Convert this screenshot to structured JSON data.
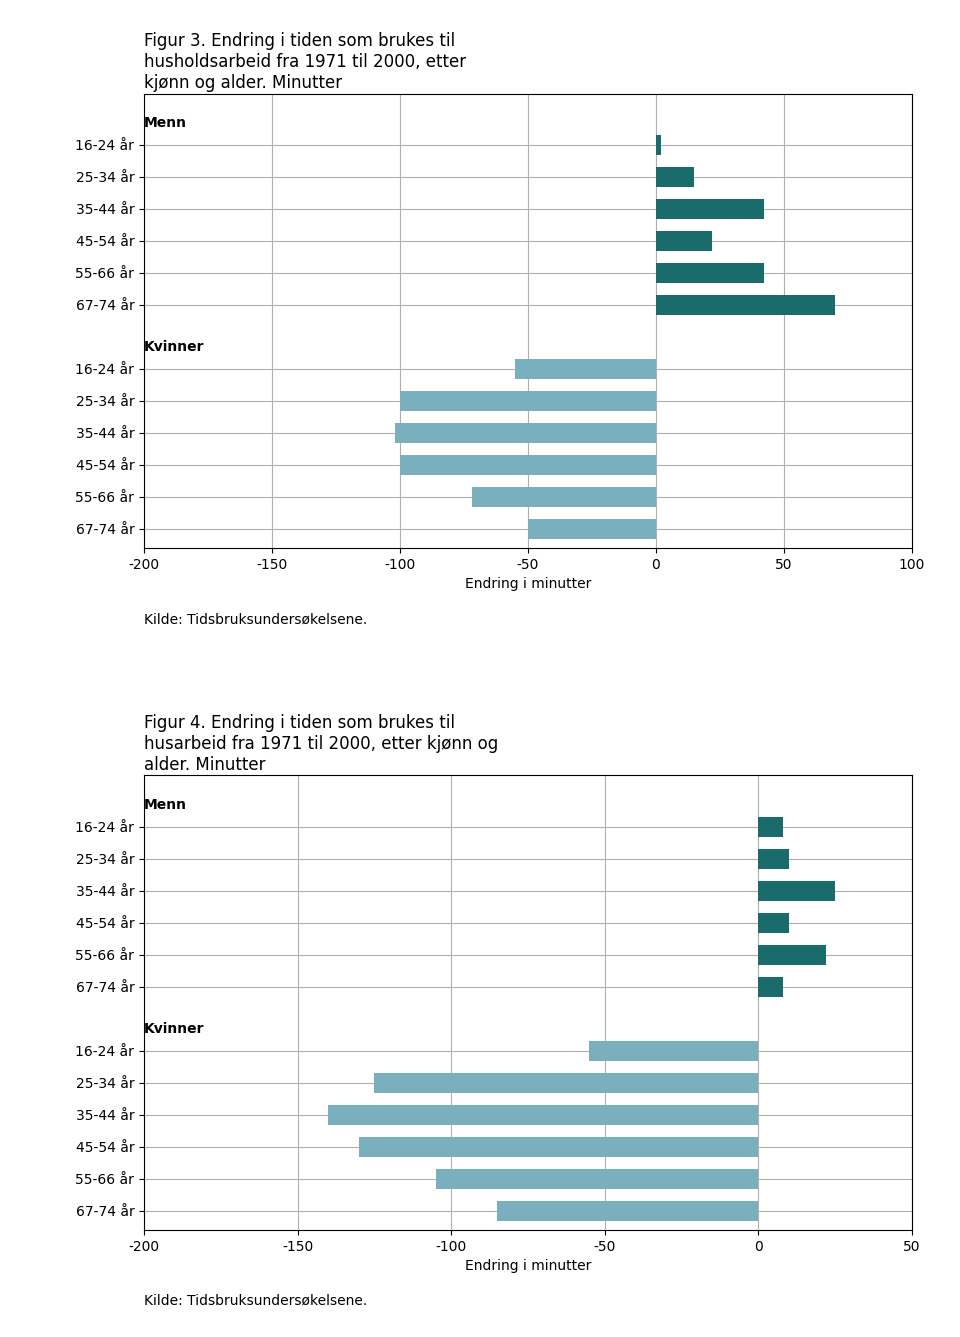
{
  "chart_data": [
    {
      "type": "bar",
      "orientation": "horizontal",
      "title": "Figur 3. Endring i tiden som brukes til\nhusholdsarbeid fra 1971 til 2000, etter\nkjønn og alder. Minutter",
      "x_label": "Endring i minutter",
      "source": "Kilde: Tidsbruksundersøkelsene.",
      "categories": [
        "16-24 år",
        "25-34 år",
        "35-44 år",
        "45-54 år",
        "55-66 år",
        "67-74 år"
      ],
      "series": [
        {
          "name": "Menn",
          "color": "#1a6b6b",
          "values": [
            2,
            15,
            42,
            22,
            42,
            70
          ]
        },
        {
          "name": "Kvinner",
          "color": "#7ab0be",
          "values": [
            -55,
            -100,
            -102,
            -100,
            -72,
            -50
          ]
        }
      ],
      "xlim": [
        -200,
        100
      ],
      "xticks": [
        -200,
        -150,
        -100,
        -50,
        0,
        50,
        100
      ],
      "grid": true
    },
    {
      "type": "bar",
      "orientation": "horizontal",
      "title": "Figur 4. Endring i tiden som brukes til\nhusarbeid fra 1971 til 2000, etter kjønn og\nalder. Minutter",
      "x_label": "Endring i minutter",
      "source": "Kilde: Tidsbruksundersøkelsene.",
      "categories": [
        "16-24 år",
        "25-34 år",
        "35-44 år",
        "45-54 år",
        "55-66 år",
        "67-74 år"
      ],
      "series": [
        {
          "name": "Menn",
          "color": "#1a6b6b",
          "values": [
            8,
            10,
            25,
            10,
            22,
            8
          ]
        },
        {
          "name": "Kvinner",
          "color": "#7ab0be",
          "values": [
            -55,
            -125,
            -140,
            -130,
            -105,
            -85
          ]
        }
      ],
      "xlim": [
        -200,
        50
      ],
      "xticks": [
        -200,
        -150,
        -100,
        -50,
        0,
        50
      ],
      "grid": true
    }
  ]
}
